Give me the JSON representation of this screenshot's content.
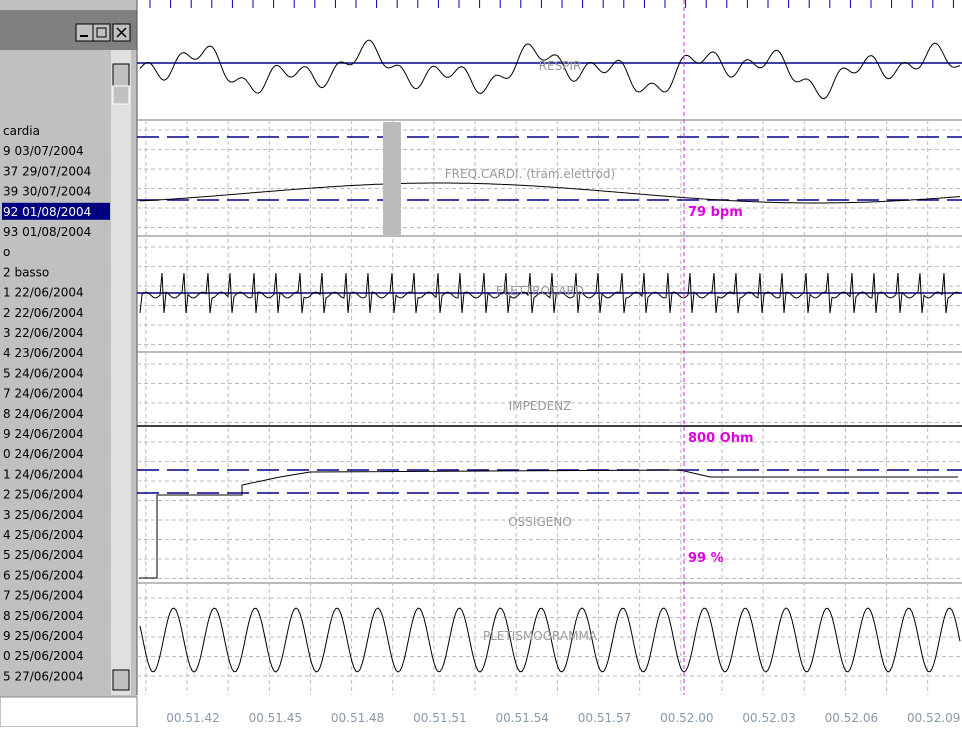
{
  "window": {
    "list": [
      "cardia",
      "9 03/07/2004",
      "37 29/07/2004",
      "39 30/07/2004",
      "92 01/08/2004",
      "93 01/08/2004",
      "o",
      "2 basso",
      "1 22/06/2004",
      "2 22/06/2004",
      "3 22/06/2004",
      "4 23/06/2004",
      "5 24/06/2004",
      "7 24/06/2004",
      "8 24/06/2004",
      "9 24/06/2004",
      "0 24/06/2004",
      "1 24/06/2004",
      "2 25/06/2004",
      "3 25/06/2004",
      "4 25/06/2004",
      "5 25/06/2004",
      "6 25/06/2004",
      "7 25/06/2004",
      "8 25/06/2004",
      "9 25/06/2004",
      "0 25/06/2004",
      "5 27/06/2004"
    ],
    "selected": 4
  },
  "channels": [
    {
      "label": "RESPIR"
    },
    {
      "label": "FREQ.CARDI. (tram.elettrod)",
      "cursor_value": "79 bpm"
    },
    {
      "label": "ELETTROCARD"
    },
    {
      "label": "IMPEDENZ",
      "cursor_value": "800 Ohm"
    },
    {
      "label": "OSSIGENO",
      "cursor_value": "99 %"
    },
    {
      "label": "PLETISMOGRAMMA"
    }
  ],
  "time_axis": [
    "00.51.42",
    "00.51.45",
    "00.51.48",
    "00.51.51",
    "00.51.54",
    "00.51.57",
    "00.52.00",
    "00.52.03",
    "00.52.06",
    "00.52.09"
  ]
}
